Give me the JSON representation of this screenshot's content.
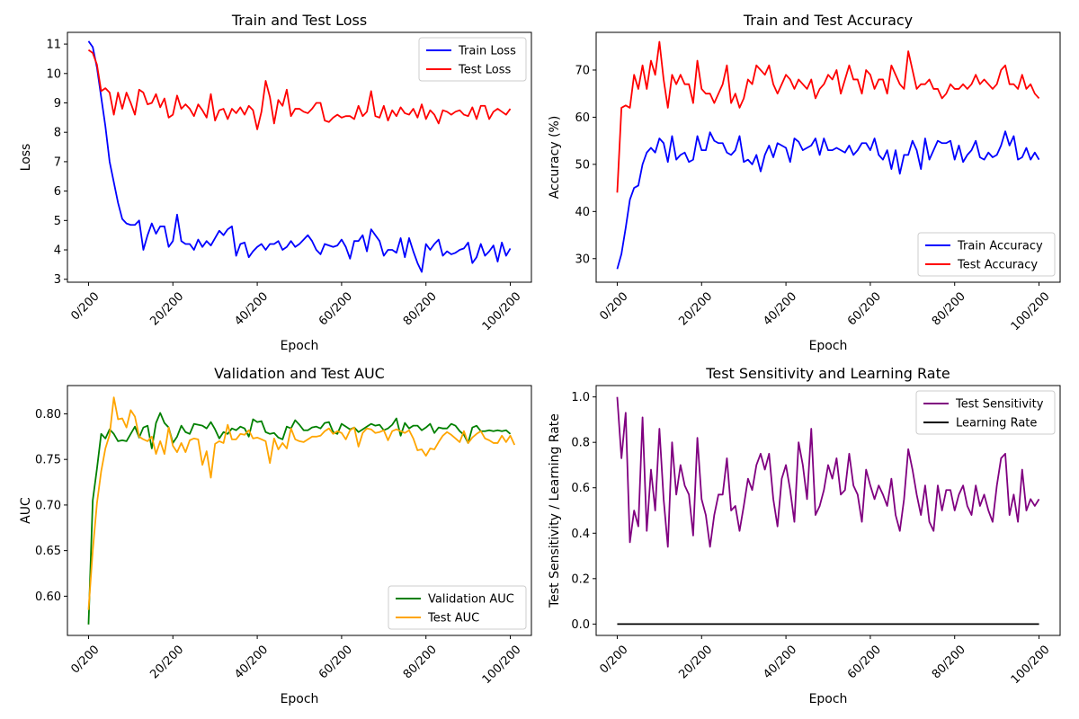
{
  "figure": {
    "background": "#ffffff"
  },
  "chart_data": [
    {
      "id": "loss",
      "type": "line",
      "title": "Train and Test Loss",
      "xlabel": "Epoch",
      "ylabel": "Loss",
      "xlim": [
        -5,
        105
      ],
      "ylim": [
        2.9,
        11.4
      ],
      "xticks": [
        0,
        20,
        40,
        60,
        80,
        100
      ],
      "xtick_labels": [
        "0/200",
        "20/200",
        "40/200",
        "60/200",
        "80/200",
        "100/200"
      ],
      "yticks": [
        3,
        4,
        5,
        6,
        7,
        8,
        9,
        10,
        11
      ],
      "ytick_labels": [
        "3",
        "4",
        "5",
        "6",
        "7",
        "8",
        "9",
        "10",
        "11"
      ],
      "grid": false,
      "legend_position": "top-right",
      "series": [
        {
          "name": "Train Loss",
          "color": "#0000ff",
          "values": [
            11.1,
            10.9,
            10.2,
            9.2,
            8.2,
            7.0,
            6.3,
            5.6,
            5.05,
            4.9,
            4.85,
            4.85,
            5.0,
            4.0,
            4.5,
            4.9,
            4.55,
            4.8,
            4.8,
            4.1,
            4.3,
            5.2,
            4.3,
            4.2,
            4.2,
            4.0,
            4.35,
            4.1,
            4.3,
            4.15,
            4.4,
            4.65,
            4.5,
            4.7,
            4.8,
            3.8,
            4.2,
            4.25,
            3.75,
            3.95,
            4.1,
            4.2,
            4.0,
            4.2,
            4.2,
            4.3,
            4.0,
            4.1,
            4.3,
            4.1,
            4.2,
            4.35,
            4.5,
            4.3,
            4.0,
            3.85,
            4.2,
            4.15,
            4.1,
            4.15,
            4.35,
            4.1,
            3.7,
            4.3,
            4.3,
            4.5,
            3.95,
            4.7,
            4.5,
            4.3,
            3.8,
            4.0,
            4.0,
            3.9,
            4.4,
            3.75,
            4.4,
            3.95,
            3.55,
            3.25,
            4.2,
            4.0,
            4.2,
            4.35,
            3.8,
            3.95,
            3.85,
            3.9,
            4.0,
            4.05,
            4.25,
            3.55,
            3.75,
            4.2,
            3.8,
            3.95,
            4.15,
            3.6,
            4.25,
            3.8,
            4.05
          ]
        },
        {
          "name": "Test Loss",
          "color": "#ff0000",
          "values": [
            10.8,
            10.7,
            10.3,
            9.4,
            9.5,
            9.35,
            8.6,
            9.35,
            8.8,
            9.35,
            9.0,
            8.6,
            9.45,
            9.35,
            8.95,
            9.0,
            9.3,
            8.85,
            9.15,
            8.5,
            8.6,
            9.25,
            8.8,
            8.95,
            8.8,
            8.55,
            8.95,
            8.75,
            8.5,
            9.3,
            8.4,
            8.75,
            8.8,
            8.45,
            8.8,
            8.65,
            8.85,
            8.6,
            8.9,
            8.75,
            8.1,
            8.7,
            9.75,
            9.2,
            8.3,
            9.1,
            8.9,
            9.45,
            8.55,
            8.8,
            8.8,
            8.7,
            8.65,
            8.8,
            9.0,
            9.0,
            8.4,
            8.35,
            8.5,
            8.6,
            8.5,
            8.55,
            8.55,
            8.45,
            8.9,
            8.55,
            8.7,
            9.4,
            8.55,
            8.5,
            8.9,
            8.4,
            8.75,
            8.55,
            8.85,
            8.65,
            8.6,
            8.8,
            8.5,
            8.95,
            8.45,
            8.75,
            8.6,
            8.3,
            8.75,
            8.7,
            8.6,
            8.7,
            8.75,
            8.6,
            8.55,
            8.85,
            8.45,
            8.9,
            8.9,
            8.45,
            8.7,
            8.8,
            8.7,
            8.6,
            8.8
          ]
        }
      ]
    },
    {
      "id": "accuracy",
      "type": "line",
      "title": "Train and Test Accuracy",
      "xlabel": "Epoch",
      "ylabel": "Accuracy (%)",
      "xlim": [
        -5,
        105
      ],
      "ylim": [
        25,
        78
      ],
      "xticks": [
        0,
        20,
        40,
        60,
        80,
        100
      ],
      "xtick_labels": [
        "0/200",
        "20/200",
        "40/200",
        "60/200",
        "80/200",
        "100/200"
      ],
      "yticks": [
        30,
        40,
        50,
        60,
        70
      ],
      "ytick_labels": [
        "30",
        "40",
        "50",
        "60",
        "70"
      ],
      "grid": false,
      "legend_position": "bottom-right",
      "series": [
        {
          "name": "Train Accuracy",
          "color": "#0000ff",
          "values": [
            27.8,
            31.0,
            36.5,
            42.5,
            45.0,
            45.5,
            50.0,
            52.5,
            53.5,
            52.5,
            55.5,
            54.5,
            50.5,
            56.0,
            51.0,
            52.0,
            52.5,
            50.5,
            51.0,
            56.0,
            53.0,
            53.0,
            56.8,
            55.0,
            54.5,
            54.5,
            52.5,
            52.0,
            53.0,
            56.0,
            50.5,
            51.0,
            50.0,
            52.0,
            48.5,
            52.0,
            54.0,
            51.5,
            54.5,
            54.0,
            53.5,
            50.5,
            55.5,
            54.8,
            53.0,
            53.5,
            54.0,
            55.5,
            52.0,
            55.5,
            53.0,
            53.0,
            53.5,
            53.0,
            52.5,
            54.0,
            52.0,
            53.0,
            54.5,
            54.5,
            53.0,
            55.5,
            52.0,
            51.0,
            53.0,
            49.0,
            53.0,
            48.0,
            52.0,
            52.0,
            55.0,
            53.0,
            49.0,
            55.5,
            51.0,
            53.0,
            55.0,
            54.5,
            54.5,
            55.0,
            51.0,
            54.0,
            50.5,
            52.0,
            53.0,
            55.0,
            51.5,
            51.0,
            52.5,
            51.5,
            52.0,
            54.0,
            57.0,
            54.0,
            56.0,
            51.0,
            51.5,
            53.5,
            51.0,
            52.5,
            51.0
          ]
        },
        {
          "name": "Test Accuracy",
          "color": "#ff0000",
          "values": [
            44.0,
            62.0,
            62.5,
            62.0,
            69.0,
            66.0,
            71.0,
            66.0,
            72.0,
            69.0,
            76.0,
            68.0,
            62.0,
            69.0,
            67.0,
            69.0,
            67.0,
            67.0,
            63.0,
            72.0,
            66.0,
            65.0,
            65.0,
            63.0,
            65.0,
            67.0,
            71.0,
            63.0,
            65.0,
            62.0,
            64.0,
            68.0,
            67.0,
            71.0,
            70.0,
            69.0,
            71.0,
            67.0,
            65.0,
            67.0,
            69.0,
            68.0,
            66.0,
            68.0,
            67.0,
            66.0,
            68.0,
            64.0,
            66.0,
            67.0,
            69.0,
            68.0,
            70.0,
            65.0,
            68.0,
            71.0,
            68.0,
            68.0,
            65.0,
            70.0,
            69.0,
            66.0,
            68.0,
            68.0,
            65.0,
            71.0,
            69.0,
            67.0,
            66.0,
            74.0,
            70.0,
            66.0,
            67.0,
            67.0,
            68.0,
            66.0,
            66.0,
            64.0,
            65.0,
            67.0,
            66.0,
            66.0,
            67.0,
            66.0,
            67.0,
            69.0,
            67.0,
            68.0,
            67.0,
            66.0,
            67.0,
            70.0,
            71.0,
            67.0,
            67.0,
            66.0,
            69.0,
            66.0,
            67.0,
            65.0,
            64.0
          ]
        }
      ]
    },
    {
      "id": "auc",
      "type": "line",
      "title": "Validation and Test AUC",
      "xlabel": "Epoch",
      "ylabel": "AUC",
      "xlim": [
        -5,
        105
      ],
      "ylim": [
        0.557,
        0.831
      ],
      "xticks": [
        0,
        20,
        40,
        60,
        80,
        100
      ],
      "xtick_labels": [
        "0/200",
        "20/200",
        "40/200",
        "60/200",
        "80/200",
        "100/200"
      ],
      "yticks": [
        0.6,
        0.65,
        0.7,
        0.75,
        0.8
      ],
      "ytick_labels": [
        "0.60",
        "0.65",
        "0.70",
        "0.75",
        "0.80"
      ],
      "grid": false,
      "legend_position": "bottom-right",
      "series": [
        {
          "name": "Validation AUC",
          "color": "#008000",
          "values": [
            0.569,
            0.705,
            0.74,
            0.778,
            0.773,
            0.783,
            0.778,
            0.77,
            0.771,
            0.77,
            0.778,
            0.786,
            0.774,
            0.785,
            0.787,
            0.762,
            0.79,
            0.801,
            0.79,
            0.785,
            0.768,
            0.775,
            0.787,
            0.78,
            0.778,
            0.789,
            0.788,
            0.787,
            0.784,
            0.791,
            0.783,
            0.773,
            0.78,
            0.778,
            0.784,
            0.782,
            0.786,
            0.784,
            0.775,
            0.794,
            0.791,
            0.792,
            0.78,
            0.778,
            0.779,
            0.774,
            0.772,
            0.786,
            0.784,
            0.793,
            0.788,
            0.782,
            0.782,
            0.785,
            0.786,
            0.784,
            0.79,
            0.791,
            0.78,
            0.778,
            0.789,
            0.786,
            0.783,
            0.785,
            0.78,
            0.783,
            0.786,
            0.789,
            0.787,
            0.788,
            0.782,
            0.784,
            0.788,
            0.795,
            0.776,
            0.79,
            0.784,
            0.787,
            0.787,
            0.782,
            0.785,
            0.789,
            0.779,
            0.785,
            0.784,
            0.784,
            0.789,
            0.787,
            0.781,
            0.777,
            0.768,
            0.785,
            0.787,
            0.781,
            0.781,
            0.782,
            0.781,
            0.782,
            0.781,
            0.782,
            0.778
          ]
        },
        {
          "name": "Test AUC",
          "color": "#ffa500",
          "values": [
            0.585,
            0.65,
            0.702,
            0.737,
            0.762,
            0.777,
            0.818,
            0.794,
            0.795,
            0.785,
            0.804,
            0.797,
            0.775,
            0.772,
            0.77,
            0.775,
            0.756,
            0.77,
            0.756,
            0.785,
            0.765,
            0.758,
            0.768,
            0.758,
            0.771,
            0.773,
            0.772,
            0.744,
            0.759,
            0.73,
            0.767,
            0.77,
            0.768,
            0.788,
            0.772,
            0.772,
            0.778,
            0.777,
            0.782,
            0.773,
            0.774,
            0.772,
            0.77,
            0.746,
            0.773,
            0.761,
            0.768,
            0.762,
            0.784,
            0.772,
            0.77,
            0.769,
            0.772,
            0.775,
            0.775,
            0.776,
            0.781,
            0.784,
            0.778,
            0.781,
            0.779,
            0.772,
            0.782,
            0.785,
            0.764,
            0.779,
            0.784,
            0.783,
            0.779,
            0.78,
            0.782,
            0.771,
            0.781,
            0.783,
            0.781,
            0.779,
            0.782,
            0.773,
            0.76,
            0.761,
            0.754,
            0.762,
            0.761,
            0.769,
            0.776,
            0.78,
            0.777,
            0.773,
            0.769,
            0.781,
            0.768,
            0.774,
            0.778,
            0.781,
            0.773,
            0.771,
            0.768,
            0.768,
            0.776,
            0.769,
            0.776,
            0.766
          ]
        }
      ]
    },
    {
      "id": "sensitivity",
      "type": "line",
      "title": "Test Sensitivity and Learning Rate",
      "xlabel": "Epoch",
      "ylabel": "Test Sensitivity / Learning Rate",
      "xlim": [
        -5,
        105
      ],
      "ylim": [
        -0.05,
        1.05
      ],
      "xticks": [
        0,
        20,
        40,
        60,
        80,
        100
      ],
      "xtick_labels": [
        "0/200",
        "20/200",
        "40/200",
        "60/200",
        "80/200",
        "100/200"
      ],
      "yticks": [
        0.0,
        0.2,
        0.4,
        0.6,
        0.8,
        1.0
      ],
      "ytick_labels": [
        "0.0",
        "0.2",
        "0.4",
        "0.6",
        "0.8",
        "1.0"
      ],
      "grid": false,
      "legend_position": "top-right",
      "series": [
        {
          "name": "Test Sensitivity",
          "color": "#800080",
          "values": [
            1.0,
            0.73,
            0.93,
            0.36,
            0.5,
            0.43,
            0.91,
            0.41,
            0.68,
            0.5,
            0.86,
            0.55,
            0.34,
            0.8,
            0.57,
            0.7,
            0.61,
            0.57,
            0.39,
            0.82,
            0.55,
            0.48,
            0.34,
            0.48,
            0.57,
            0.57,
            0.73,
            0.5,
            0.52,
            0.41,
            0.52,
            0.64,
            0.59,
            0.7,
            0.75,
            0.68,
            0.75,
            0.55,
            0.43,
            0.64,
            0.7,
            0.59,
            0.45,
            0.8,
            0.7,
            0.55,
            0.86,
            0.48,
            0.52,
            0.59,
            0.7,
            0.64,
            0.73,
            0.57,
            0.59,
            0.75,
            0.61,
            0.57,
            0.45,
            0.68,
            0.61,
            0.55,
            0.61,
            0.57,
            0.52,
            0.64,
            0.48,
            0.41,
            0.55,
            0.77,
            0.68,
            0.57,
            0.48,
            0.61,
            0.45,
            0.41,
            0.61,
            0.5,
            0.59,
            0.59,
            0.5,
            0.57,
            0.61,
            0.52,
            0.48,
            0.61,
            0.52,
            0.57,
            0.5,
            0.45,
            0.61,
            0.73,
            0.75,
            0.48,
            0.57,
            0.45,
            0.68,
            0.5,
            0.55,
            0.52,
            0.55
          ]
        },
        {
          "name": "Learning Rate",
          "color": "#000000",
          "values": [
            0.0,
            0.0,
            0.0,
            0.0,
            0.0,
            0.0,
            0.0,
            0.0,
            0.0,
            0.0,
            0.0,
            0.0,
            0.0,
            0.0,
            0.0,
            0.0,
            0.0,
            0.0,
            0.0,
            0.0,
            0.0,
            0.0,
            0.0,
            0.0,
            0.0,
            0.0,
            0.0,
            0.0,
            0.0,
            0.0,
            0.0,
            0.0,
            0.0,
            0.0,
            0.0,
            0.0,
            0.0,
            0.0,
            0.0,
            0.0,
            0.0,
            0.0,
            0.0,
            0.0,
            0.0,
            0.0,
            0.0,
            0.0,
            0.0,
            0.0,
            0.0,
            0.0,
            0.0,
            0.0,
            0.0,
            0.0,
            0.0,
            0.0,
            0.0,
            0.0,
            0.0,
            0.0,
            0.0,
            0.0,
            0.0,
            0.0,
            0.0,
            0.0,
            0.0,
            0.0,
            0.0,
            0.0,
            0.0,
            0.0,
            0.0,
            0.0,
            0.0,
            0.0,
            0.0,
            0.0,
            0.0,
            0.0,
            0.0,
            0.0,
            0.0,
            0.0,
            0.0,
            0.0,
            0.0,
            0.0,
            0.0,
            0.0,
            0.0,
            0.0,
            0.0,
            0.0,
            0.0,
            0.0,
            0.0,
            0.0,
            0.0
          ]
        }
      ]
    }
  ]
}
